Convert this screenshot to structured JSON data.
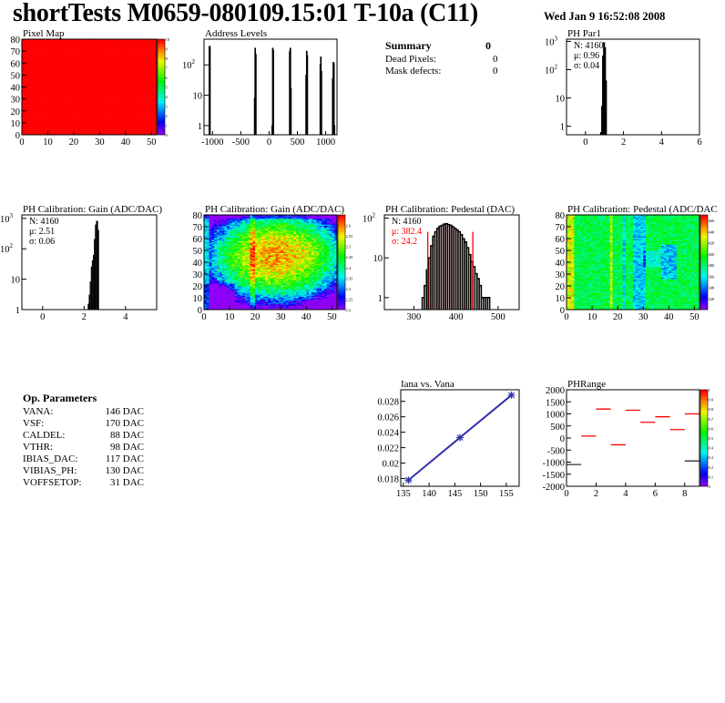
{
  "header": {
    "title": "shortTests M0659-080109.15:01 T-10a (C11)",
    "date": "Wed Jan  9 16:52:08 2008"
  },
  "summary": {
    "title": "Summary",
    "total": "0",
    "rows": [
      {
        "label": "Dead Pixels:",
        "value": "0"
      },
      {
        "label": "Mask defects:",
        "value": "0"
      }
    ]
  },
  "op_params": {
    "title": "Op. Parameters",
    "rows": [
      {
        "label": "VANA:",
        "value": "146 DAC"
      },
      {
        "label": "VSF:",
        "value": "170 DAC"
      },
      {
        "label": "CALDEL:",
        "value": "88 DAC"
      },
      {
        "label": "VTHR:",
        "value": "98 DAC"
      },
      {
        "label": "IBIAS_DAC:",
        "value": "117 DAC"
      },
      {
        "label": "VIBIAS_PH:",
        "value": "130 DAC"
      },
      {
        "label": "VOFFSETOP:",
        "value": "31 DAC"
      }
    ]
  },
  "colors": {
    "hist_line": "#000000",
    "fit_red": "#ff0000",
    "graph_blue": "#3333aa",
    "pixel_map_fill": "#ff0000"
  },
  "chart_data": [
    {
      "id": "pixelmap",
      "type": "heatmap",
      "title": "Pixel Map",
      "xlim": [
        0,
        52
      ],
      "ylim": [
        0,
        80
      ],
      "zlim": [
        0,
        10
      ],
      "xticks": [
        "0",
        "10",
        "20",
        "30",
        "40",
        "50"
      ],
      "yticks": [
        "0",
        "10",
        "20",
        "30",
        "40",
        "50",
        "60",
        "70",
        "80"
      ],
      "zticks": [
        "0",
        "1",
        "2",
        "3",
        "4",
        "5",
        "6",
        "7",
        "8",
        "9",
        "10"
      ],
      "uniform_value": 10
    },
    {
      "id": "address",
      "type": "bar",
      "title": "Address Levels",
      "xlim": [
        -1150,
        1200
      ],
      "ylim": [
        0.5,
        700
      ],
      "log_y": true,
      "xticks": [
        "-1000",
        "-500",
        "0",
        "500",
        "1000"
      ],
      "yticks": [
        "1",
        "10",
        "10^2"
      ],
      "x": [
        -1060,
        -1050,
        -260,
        -250,
        -240,
        50,
        60,
        70,
        360,
        370,
        380,
        650,
        660,
        670,
        900,
        910,
        920,
        1120,
        1130,
        1140,
        1150
      ],
      "values": [
        400,
        400,
        8,
        350,
        220,
        1,
        350,
        300,
        270,
        350,
        17,
        45,
        280,
        200,
        100,
        180,
        60,
        35,
        120,
        110,
        1
      ]
    },
    {
      "id": "phpar1",
      "type": "bar",
      "title": "PH Par1",
      "xlim": [
        -1,
        6
      ],
      "ylim": [
        0.5,
        1200
      ],
      "log_y": true,
      "xticks": [
        "0",
        "2",
        "4",
        "6"
      ],
      "yticks": [
        "1",
        "10",
        "10^2",
        "10^3"
      ],
      "bin_width": 0.05,
      "x": [
        0.8,
        0.85,
        0.9,
        0.95,
        1.0,
        1.05
      ],
      "values": [
        0.6,
        5,
        300,
        900,
        600,
        40
      ],
      "stats": {
        "n": "N: 4160",
        "mean": "μ: 0.96",
        "sigma": "σ: 0.04"
      }
    },
    {
      "id": "gainhist",
      "type": "bar",
      "title": "PH Calibration: Gain (ADC/DAC)",
      "xlim": [
        -1,
        5.5
      ],
      "ylim": [
        1,
        1300
      ],
      "log_y": true,
      "xticks": [
        "0",
        "2",
        "4"
      ],
      "yticks": [
        "1",
        "10",
        "10^2",
        "10^3"
      ],
      "bin_width": 0.05,
      "x": [
        2.2,
        2.25,
        2.3,
        2.35,
        2.4,
        2.45,
        2.5,
        2.55,
        2.6,
        2.65
      ],
      "values": [
        1.5,
        3,
        8,
        25,
        40,
        60,
        200,
        600,
        800,
        400
      ],
      "stats": {
        "n": "N: 4160",
        "mean": "μ: 2.51",
        "sigma": "σ: 0.06"
      }
    },
    {
      "id": "gainmap",
      "type": "heatmap",
      "title": "PH Calibration: Gain (ADC/DAC)",
      "xlim": [
        0,
        52
      ],
      "ylim": [
        0,
        80
      ],
      "zlim": [
        2.2,
        2.65
      ],
      "xticks": [
        "0",
        "10",
        "20",
        "30",
        "40",
        "50"
      ],
      "yticks": [
        "0",
        "10",
        "20",
        "30",
        "40",
        "50",
        "60",
        "70",
        "80"
      ],
      "zticks": [
        "2.2",
        "2.25",
        "2.3",
        "2.35",
        "2.4",
        "2.45",
        "2.5",
        "2.55",
        "2.6"
      ]
    },
    {
      "id": "pedhist",
      "type": "bar",
      "title": "PH Calibration: Pedestal (DAC)",
      "xlim": [
        230,
        550
      ],
      "ylim": [
        0.5,
        120
      ],
      "log_y": true,
      "xticks": [
        "300",
        "400",
        "500"
      ],
      "yticks": [
        "1",
        "10",
        "10^2"
      ],
      "bin_width": 5,
      "x": [
        320,
        325,
        330,
        335,
        340,
        345,
        350,
        355,
        360,
        365,
        370,
        375,
        380,
        385,
        390,
        395,
        400,
        405,
        410,
        415,
        420,
        425,
        430,
        435,
        440,
        445,
        450,
        455,
        460,
        465,
        470,
        475
      ],
      "values": [
        1,
        2,
        5,
        10,
        20,
        35,
        45,
        55,
        62,
        65,
        70,
        72,
        68,
        65,
        60,
        55,
        50,
        45,
        38,
        30,
        25,
        18,
        12,
        8,
        6,
        4,
        3,
        2,
        1,
        1,
        1,
        1
      ],
      "fit_range": [
        333,
        440
      ],
      "stats": {
        "n": "N: 4160",
        "mean": "μ: 382.4",
        "sigma": "σ: 24.2"
      }
    },
    {
      "id": "pedmap",
      "type": "heatmap",
      "title": "PH Calibration: Pedestal (ADC/DAC",
      "xlim": [
        0,
        52
      ],
      "ylim": [
        0,
        80
      ],
      "zlim": [
        300,
        470
      ],
      "xticks": [
        "0",
        "10",
        "20",
        "30",
        "40",
        "50"
      ],
      "yticks": [
        "0",
        "10",
        "20",
        "30",
        "40",
        "50",
        "60",
        "70",
        "80"
      ],
      "zticks": [
        "320",
        "340",
        "360",
        "380",
        "400",
        "420",
        "440",
        "460"
      ]
    },
    {
      "id": "iana",
      "type": "line",
      "title": "Iana vs. Vana",
      "xlim": [
        134.5,
        157.5
      ],
      "ylim": [
        0.017,
        0.0295
      ],
      "xticks": [
        "135",
        "140",
        "145",
        "150",
        "155"
      ],
      "yticks": [
        "0.018",
        "0.02",
        "0.022",
        "0.024",
        "0.026",
        "0.028"
      ],
      "x": [
        136,
        146,
        156
      ],
      "values": [
        0.0178,
        0.0233,
        0.0288
      ]
    },
    {
      "id": "phrange",
      "type": "heatmap",
      "title": "PHRange",
      "xlim": [
        0,
        9
      ],
      "ylim": [
        -2000,
        2000
      ],
      "zlim": [
        0,
        1
      ],
      "xticks": [
        "0",
        "2",
        "4",
        "6",
        "8"
      ],
      "yticks": [
        "-2000",
        "-1500",
        "-1000",
        "-500",
        "0",
        "500",
        "1000",
        "1500",
        "2000"
      ],
      "zticks": [
        "0",
        "0.1",
        "0.2",
        "0.3",
        "0.4",
        "0.5",
        "0.6",
        "0.7",
        "0.8",
        "0.9",
        "1"
      ],
      "segments": [
        {
          "x0": 0,
          "x1": 1,
          "y": -1100,
          "z": 1
        },
        {
          "x0": 1,
          "x1": 2,
          "y": 80,
          "z": 1
        },
        {
          "x0": 2,
          "x1": 3,
          "y": 1200,
          "z": 1
        },
        {
          "x0": 3,
          "x1": 4,
          "y": -280,
          "z": 1
        },
        {
          "x0": 4,
          "x1": 5,
          "y": 1150,
          "z": 1
        },
        {
          "x0": 5,
          "x1": 6,
          "y": 650,
          "z": 1
        },
        {
          "x0": 6,
          "x1": 7,
          "y": 880,
          "z": 1
        },
        {
          "x0": 7,
          "x1": 8,
          "y": 350,
          "z": 1
        },
        {
          "x0": 8,
          "x1": 9,
          "y": 1000,
          "z": 1
        },
        {
          "x0": 8,
          "x1": 9,
          "y": -950,
          "z": 1
        }
      ]
    }
  ]
}
